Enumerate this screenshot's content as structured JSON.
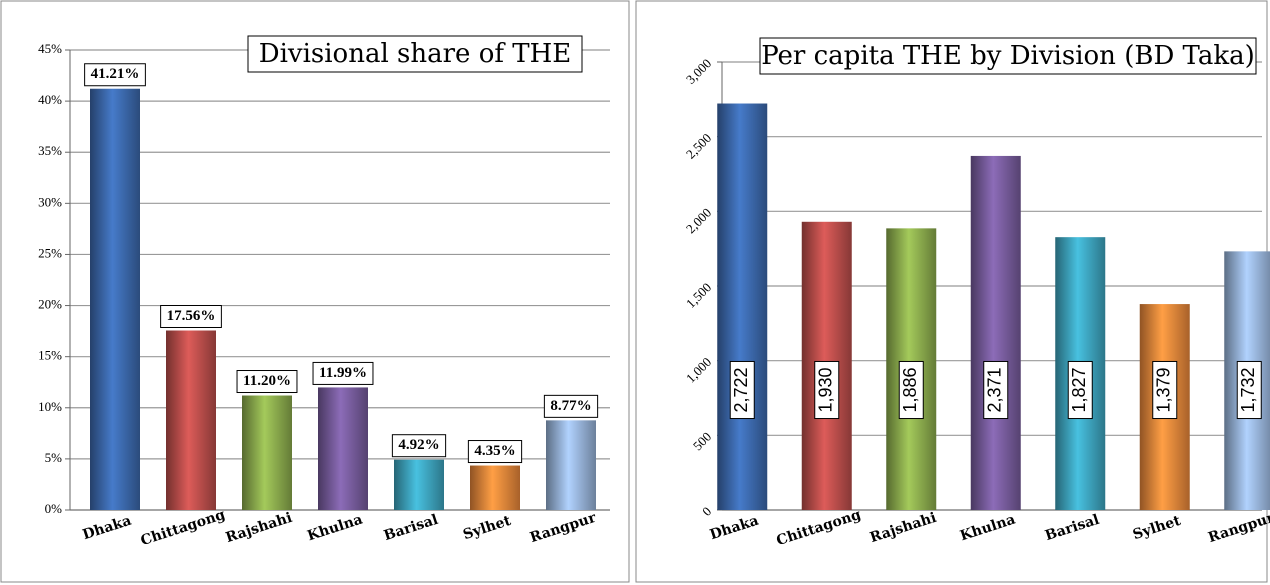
{
  "chart_data": [
    {
      "type": "bar",
      "title": "Divisional share of THE",
      "categories": [
        "Dhaka",
        "Chittagong",
        "Rajshahi",
        "Khulna",
        "Barisal",
        "Sylhet",
        "Rangpur"
      ],
      "values": [
        41.21,
        17.56,
        11.2,
        11.99,
        4.92,
        4.35,
        8.77
      ],
      "value_labels": [
        "41.21%",
        "17.56%",
        "11.20%",
        "11.99%",
        "4.92%",
        "4.35%",
        "8.77%"
      ],
      "colors": [
        "#3d6bb0",
        "#c0504d",
        "#8fb04f",
        "#7a5ea0",
        "#3fa8c3",
        "#f08a3c",
        "#9ab7dd"
      ],
      "ylim": [
        0,
        45
      ],
      "yticks": [
        {
          "value": 0,
          "label": "0%"
        },
        {
          "value": 5,
          "label": "5%"
        },
        {
          "value": 10,
          "label": "10%"
        },
        {
          "value": 15,
          "label": "15%"
        },
        {
          "value": 20,
          "label": "20%"
        },
        {
          "value": 25,
          "label": "25%"
        },
        {
          "value": 30,
          "label": "30%"
        },
        {
          "value": 35,
          "label": "35%"
        },
        {
          "value": 40,
          "label": "40%"
        },
        {
          "value": 45,
          "label": "45%"
        }
      ],
      "grid": true
    },
    {
      "type": "bar",
      "title": "Per capita THE by Division (BD Taka)",
      "categories": [
        "Dhaka",
        "Chittagong",
        "Rajshahi",
        "Khulna",
        "Barisal",
        "Sylhet",
        "Rangpur"
      ],
      "values": [
        2722,
        1930,
        1886,
        2371,
        1827,
        1379,
        1732
      ],
      "value_labels": [
        "2,722",
        "1,930",
        "1,886",
        "2,371",
        "1,827",
        "1,379",
        "1,732"
      ],
      "colors": [
        "#3d6bb0",
        "#c0504d",
        "#8fb04f",
        "#7a5ea0",
        "#3fa8c3",
        "#f08a3c",
        "#9ab7dd"
      ],
      "ylim": [
        0,
        3000
      ],
      "yticks": [
        0,
        500,
        {
          "value": 1000,
          "label": "1,000"
        },
        {
          "value": 1500,
          "label": "1,500"
        },
        {
          "value": 2000,
          "label": "2,000"
        },
        {
          "value": 2500,
          "label": "2,500"
        },
        {
          "value": 3000,
          "label": "3,000"
        }
      ],
      "grid": true
    }
  ]
}
